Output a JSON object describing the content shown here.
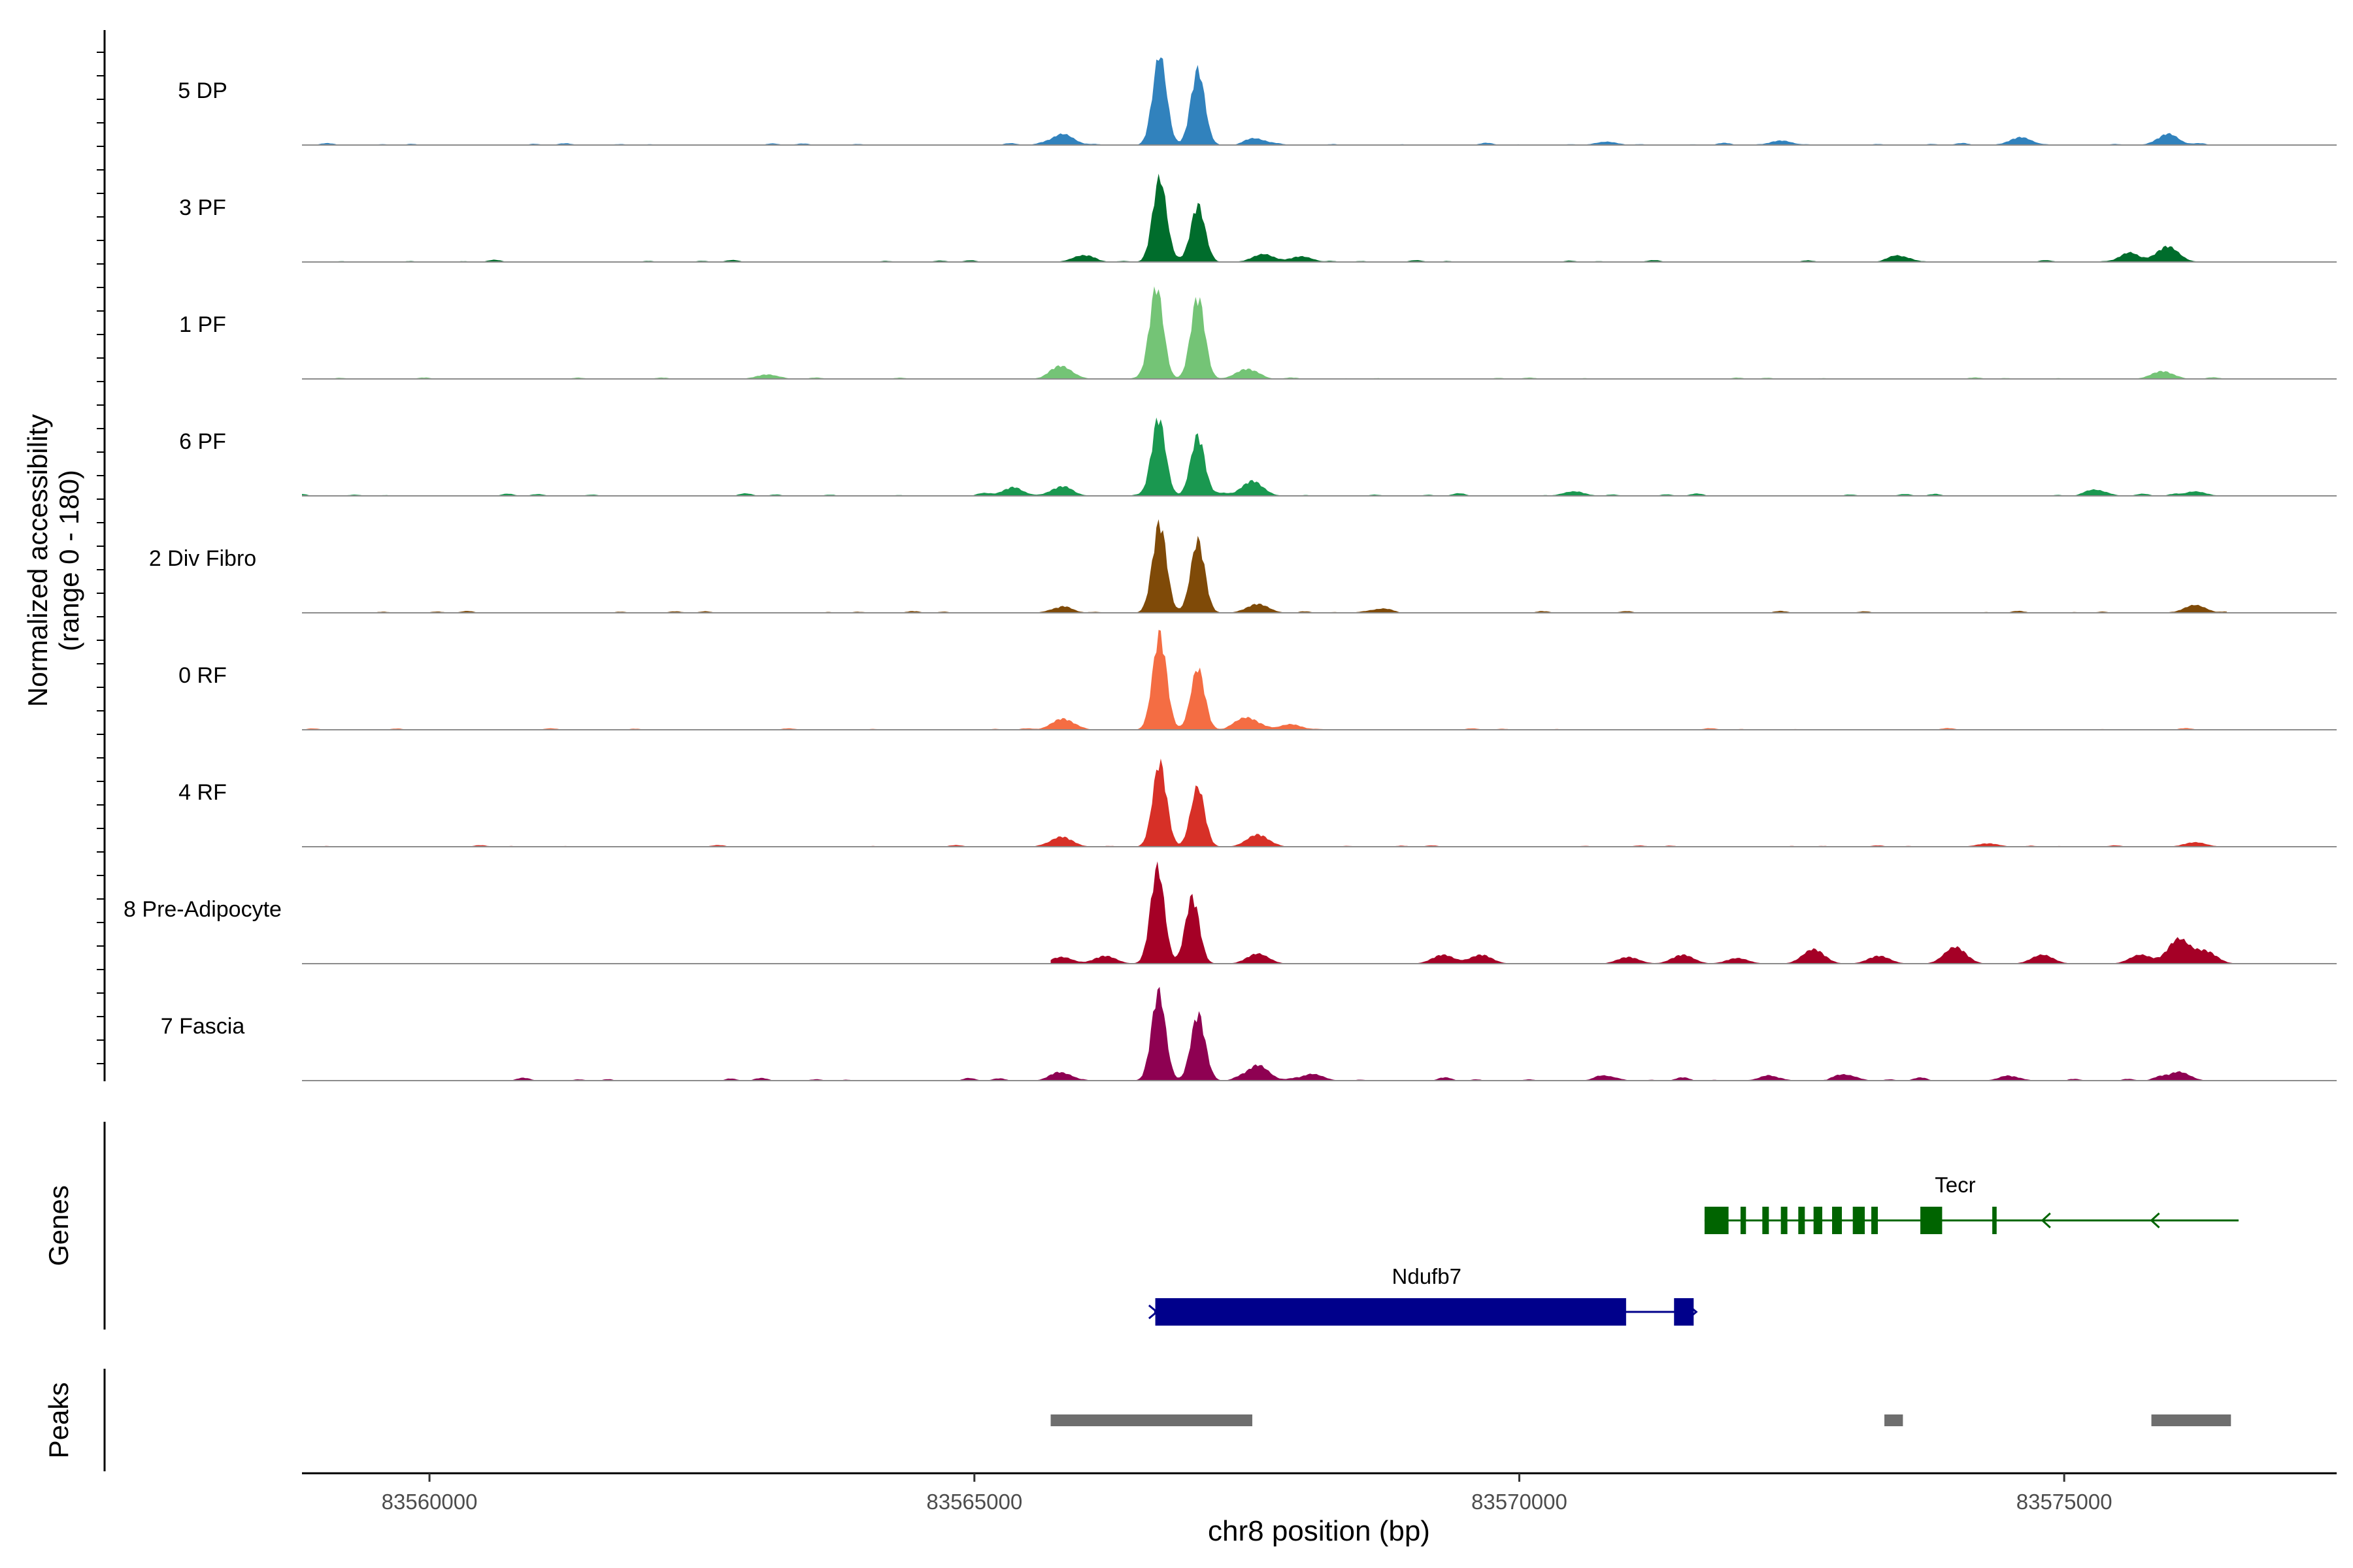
{
  "chart_data": {
    "type": "area",
    "chromosome": "chr8",
    "xlabel": "chr8 position (bp)",
    "x_ticks": [
      83560000,
      83565000,
      83570000,
      83575000
    ],
    "xlim": [
      83558830,
      83577500
    ],
    "coverage_panel": {
      "ylabel_line1": "Normalized accessibility",
      "ylabel_line2": "(range 0 - 180)",
      "ylim": [
        0,
        180
      ]
    },
    "genes_label": "Genes",
    "peaks_label": "Peaks",
    "tracks": [
      {
        "name": "5 DP",
        "color": "#3182bd",
        "peaks": [
          [
            83566700,
            160
          ],
          [
            83567050,
            135
          ]
        ],
        "bumps": [
          [
            83565810,
            20
          ],
          [
            83574600,
            14
          ],
          [
            83575950,
            18
          ],
          [
            83572400,
            8
          ],
          [
            83570800,
            6
          ],
          [
            83567600,
            10
          ]
        ],
        "baseline": 4,
        "range": [
          83558830,
          83576500
        ]
      },
      {
        "name": "3 PF",
        "color": "#006d2c",
        "peaks": [
          [
            83566700,
            150
          ],
          [
            83567050,
            102
          ]
        ],
        "bumps": [
          [
            83575950,
            28
          ],
          [
            83575600,
            14
          ],
          [
            83573500,
            10
          ],
          [
            83566000,
            12
          ],
          [
            83568000,
            10
          ],
          [
            83567650,
            14
          ]
        ],
        "baseline": 4,
        "range": [
          83558830,
          83576500
        ]
      },
      {
        "name": "1 PF",
        "color": "#74c476",
        "peaks": [
          [
            83566670,
            165
          ],
          [
            83567050,
            148
          ]
        ],
        "bumps": [
          [
            83565800,
            22
          ],
          [
            83575900,
            14
          ],
          [
            83567500,
            18
          ],
          [
            83563100,
            8
          ]
        ],
        "baseline": 3,
        "range": [
          83558830,
          83576500
        ]
      },
      {
        "name": "6 PF",
        "color": "#1a9850",
        "peaks": [
          [
            83566690,
            140
          ],
          [
            83567050,
            108
          ]
        ],
        "bumps": [
          [
            83565350,
            14
          ],
          [
            83565800,
            16
          ],
          [
            83567550,
            26
          ],
          [
            83575300,
            10
          ],
          [
            83576200,
            8
          ],
          [
            83570500,
            8
          ]
        ],
        "baseline": 5,
        "range": [
          83558830,
          83576600
        ]
      },
      {
        "name": "2 Div Fibro",
        "color": "#7f4a08",
        "peaks": [
          [
            83566700,
            160
          ],
          [
            83567050,
            130
          ]
        ],
        "bumps": [
          [
            83565800,
            10
          ],
          [
            83576200,
            14
          ],
          [
            83567600,
            16
          ],
          [
            83568700,
            6
          ]
        ],
        "baseline": 4,
        "range": [
          83558830,
          83576500
        ]
      },
      {
        "name": "0 RF",
        "color": "#f46d43",
        "peaks": [
          [
            83566700,
            172
          ],
          [
            83567050,
            110
          ]
        ],
        "bumps": [
          [
            83565810,
            20
          ],
          [
            83567500,
            22
          ],
          [
            83567900,
            10
          ]
        ],
        "baseline": 3,
        "range": [
          83558830,
          83576500
        ]
      },
      {
        "name": "4 RF",
        "color": "#d73027",
        "peaks": [
          [
            83566700,
            150
          ],
          [
            83567050,
            105
          ]
        ],
        "bumps": [
          [
            83565800,
            18
          ],
          [
            83567600,
            22
          ],
          [
            83576200,
            8
          ],
          [
            83574300,
            6
          ]
        ],
        "baseline": 3,
        "range": [
          83558830,
          83576500
        ]
      },
      {
        "name": "8 Pre-Adipocyte",
        "color": "#a50026",
        "peaks": [
          [
            83566680,
            172
          ],
          [
            83567000,
            120
          ]
        ],
        "bumps": [
          [
            83567600,
            18
          ],
          [
            83569300,
            16
          ],
          [
            83569650,
            16
          ],
          [
            83574000,
            30
          ],
          [
            83572700,
            26
          ],
          [
            83576050,
            44
          ],
          [
            83575700,
            16
          ],
          [
            83565800,
            12
          ],
          [
            83566200,
            14
          ],
          [
            83571500,
            16
          ],
          [
            83573300,
            14
          ],
          [
            83574800,
            16
          ],
          [
            83576300,
            22
          ],
          [
            83571000,
            12
          ],
          [
            83572000,
            10
          ]
        ],
        "baseline": 0,
        "range": [
          83565700,
          83576600
        ]
      },
      {
        "name": "7 Fascia",
        "color": "#8e0152",
        "peaks": [
          [
            83566690,
            160
          ],
          [
            83567050,
            118
          ]
        ],
        "bumps": [
          [
            83565800,
            14
          ],
          [
            83567600,
            28
          ],
          [
            83568100,
            12
          ],
          [
            83576050,
            16
          ],
          [
            83573000,
            10
          ],
          [
            83570800,
            8
          ],
          [
            83572300,
            8
          ],
          [
            83574500,
            8
          ]
        ],
        "baseline": 6,
        "range": [
          83560700,
          83576600
        ]
      }
    ],
    "genes": [
      {
        "name": "Tecr",
        "color": "#006400",
        "strand": "-",
        "start": 83571700,
        "end": 83576600,
        "exons": [
          [
            83571700,
            83571920
          ],
          [
            83572030,
            83572080
          ],
          [
            83572230,
            83572290
          ],
          [
            83572400,
            83572460
          ],
          [
            83572560,
            83572620
          ],
          [
            83572700,
            83572780
          ],
          [
            83572870,
            83572960
          ],
          [
            83573060,
            83573170
          ],
          [
            83573230,
            83573290
          ],
          [
            83573680,
            83573880
          ],
          [
            83574340,
            83574380
          ]
        ]
      },
      {
        "name": "Ndufb7",
        "color": "#00008b",
        "strand": "-",
        "start": 83566650,
        "end": 83571600,
        "exons": [
          [
            83566660,
            83570980
          ],
          [
            83571420,
            83571600
          ]
        ]
      }
    ],
    "peaks": [
      [
        83565700,
        83567550
      ],
      [
        83573350,
        83573520
      ],
      [
        83575800,
        83576530
      ]
    ]
  }
}
